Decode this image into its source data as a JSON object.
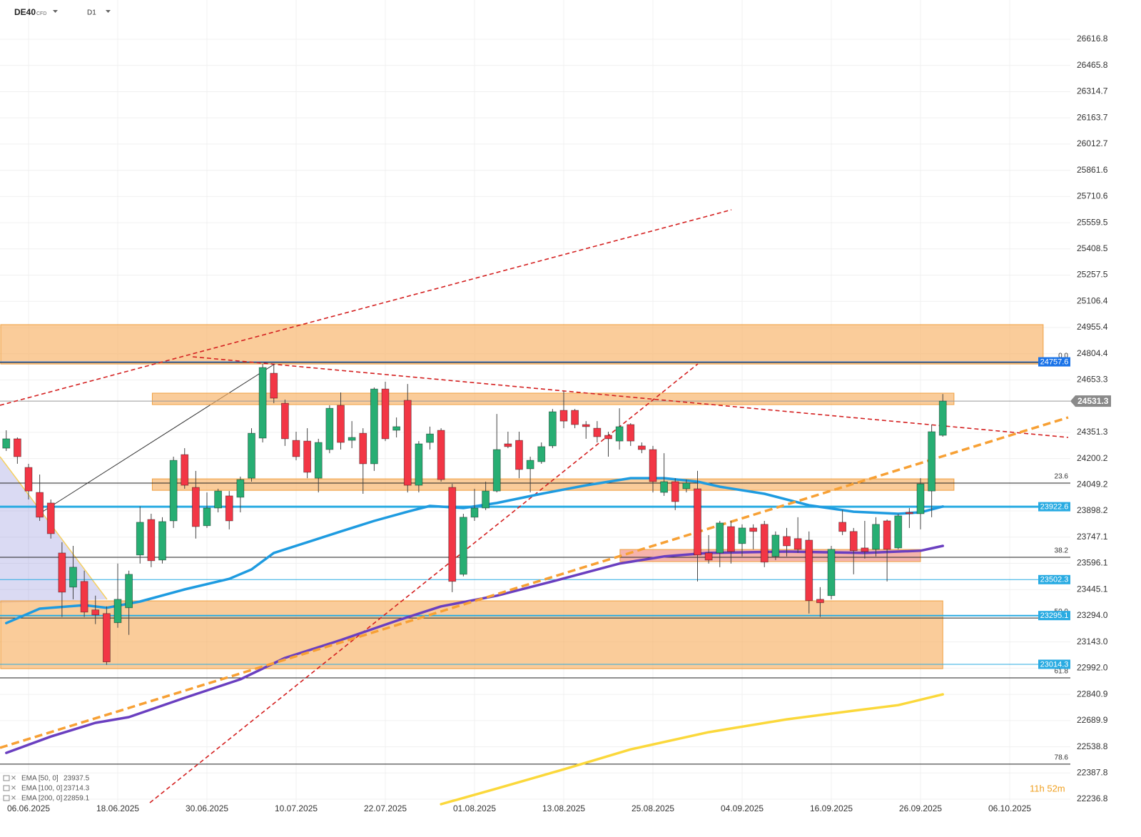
{
  "chart_data": {
    "type": "candlestick",
    "symbol": "DE40",
    "instrument_type": "CFD",
    "timeframe": "D1",
    "categories": [
      null,
      null,
      "06.06.2025",
      null,
      null,
      null,
      null,
      null,
      null,
      null,
      "18.06.2025",
      null,
      null,
      null,
      null,
      null,
      null,
      null,
      "30.06.2025",
      null,
      null,
      null,
      null,
      null,
      null,
      null,
      "10.07.2025",
      null,
      null,
      null,
      null,
      null,
      null,
      null,
      "22.07.2025",
      null,
      null,
      null,
      null,
      null,
      null,
      null,
      "01.08.2025",
      null,
      null,
      null,
      null,
      null,
      null,
      null,
      "13.08.2025",
      null,
      null,
      null,
      null,
      null,
      null,
      null,
      "25.08.2025",
      null,
      null,
      null,
      null,
      null,
      null,
      null,
      "04.09.2025",
      null,
      null,
      null,
      null,
      null,
      null,
      null,
      "16.09.2025",
      null,
      null,
      null,
      null,
      null,
      null,
      null,
      "26.09.2025",
      null,
      null,
      null,
      null,
      null,
      null,
      null,
      "06.10.2025"
    ],
    "open": [
      24260,
      24314,
      24149,
      24005,
      23944,
      23656,
      23459,
      23492,
      23328,
      23307,
      23254,
      23340,
      23644,
      23849,
      23615,
      23841,
      24223,
      24034,
      23813,
      23915,
      23985,
      23977,
      24087,
      24318,
      24692,
      24519,
      24305,
      24301,
      24087,
      24252,
      24507,
      24305,
      24346,
      24170,
      24601,
      24363,
      24536,
      24046,
      24293,
      24363,
      24034,
      23533,
      23862,
      23915,
      24013,
      24285,
      24305,
      24141,
      24182,
      24273,
      24478,
      24478,
      24396,
      24375,
      24334,
      24301,
      24396,
      24273,
      24252,
      24005,
      24067,
      24026,
      24026,
      23656,
      23656,
      23808,
      23710,
      23800,
      23821,
      23636,
      23751,
      23739,
      23730,
      23389,
      23410,
      23833,
      23780,
      23685,
      23677,
      23841,
      23685,
      23890,
      23882,
      24013,
      24334,
      null,
      null,
      null,
      null,
      null,
      null
    ],
    "high": [
      24363,
      24322,
      24170,
      24108,
      23964,
      23718,
      23697,
      23554,
      23410,
      23348,
      23595,
      23554,
      23924,
      23882,
      23862,
      24211,
      24260,
      24129,
      24005,
      24026,
      24013,
      24096,
      24375,
      24745,
      24745,
      24540,
      24355,
      24375,
      24314,
      24507,
      24581,
      24416,
      24375,
      24610,
      24643,
      24437,
      24630,
      24301,
      24384,
      24375,
      24054,
      23882,
      24026,
      24067,
      24457,
      24355,
      24355,
      24211,
      24293,
      24486,
      24589,
      24486,
      24416,
      24416,
      24355,
      24490,
      24404,
      24293,
      24273,
      24231,
      24087,
      24079,
      24129,
      23759,
      23841,
      23841,
      23821,
      23821,
      23841,
      23780,
      23800,
      23862,
      23780,
      23459,
      23697,
      23903,
      23800,
      23841,
      23862,
      23849,
      23882,
      23915,
      24087,
      24396,
      24572,
      null,
      null,
      null,
      null,
      null,
      null
    ],
    "low": [
      24244,
      24170,
      23964,
      23841,
      23739,
      23287,
      23389,
      23287,
      23246,
      23011,
      23225,
      23184,
      23595,
      23574,
      23595,
      23800,
      24026,
      23739,
      23800,
      23890,
      23792,
      23890,
      24067,
      24293,
      24519,
      24273,
      24190,
      24087,
      24005,
      24231,
      24252,
      24260,
      23997,
      24129,
      24301,
      24322,
      24005,
      24005,
      24252,
      24067,
      23430,
      23521,
      23841,
      23903,
      24005,
      24260,
      24087,
      24005,
      24170,
      24260,
      24375,
      24375,
      24314,
      24293,
      24211,
      24252,
      24273,
      24231,
      24005,
      23985,
      23903,
      24005,
      23492,
      23595,
      23574,
      23595,
      23636,
      23677,
      23574,
      23615,
      23636,
      23656,
      23307,
      23287,
      23389,
      23759,
      23533,
      23624,
      23636,
      23492,
      23677,
      23800,
      23792,
      23862,
      24326,
      null,
      null,
      null,
      null,
      null,
      null
    ],
    "close": [
      24314,
      24211,
      24013,
      23862,
      23767,
      23430,
      23574,
      23315,
      23299,
      23028,
      23389,
      23533,
      23833,
      23611,
      23837,
      24190,
      24046,
      23808,
      23915,
      24013,
      23841,
      24079,
      24346,
      24725,
      24548,
      24314,
      24211,
      24121,
      24293,
      24490,
      24293,
      24322,
      24170,
      24601,
      24314,
      24384,
      24046,
      24285,
      24342,
      24079,
      23492,
      23862,
      23915,
      24013,
      24252,
      24269,
      24137,
      24190,
      24269,
      24470,
      24416,
      24396,
      24384,
      24326,
      24314,
      24384,
      24301,
      24252,
      24067,
      24067,
      23952,
      24059,
      23644,
      23615,
      23829,
      23664,
      23800,
      23780,
      23603,
      23759,
      23697,
      23677,
      23381,
      23369,
      23677,
      23780,
      23669,
      23664,
      23821,
      23677,
      23870,
      23882,
      24054,
      24355,
      24531.3,
      null,
      null,
      null,
      null,
      null,
      null
    ],
    "up_color": "#27ae73",
    "down_color": "#f23645",
    "ylim": [
      22204,
      26843
    ],
    "yticks": [
      22236.8,
      22387.8,
      22538.8,
      22689.9,
      22840.9,
      {
        "value": 22992,
        "label": "22992.0"
      },
      {
        "value": 23143,
        "label": "23143.0"
      },
      {
        "value": 23294,
        "label": "23294.0"
      },
      23445.1,
      23596.1,
      23747.1,
      23898.2,
      24049.2,
      24200.2,
      24351.3,
      24653.3,
      24804.4,
      24955.4,
      25106.4,
      25257.5,
      25408.5,
      25559.5,
      25710.6,
      25861.6,
      26012.7,
      26163.7,
      26314.7,
      26465.8,
      26616.8
    ],
    "grid": true,
    "ema": [
      {
        "name": "EMA [50, 0]",
        "last": 23937.5,
        "color": "#1e9be0",
        "x": [
          0,
          3,
          7,
          9,
          12,
          16,
          20,
          22,
          24,
          27,
          30,
          33,
          36,
          38,
          41,
          44,
          48,
          52,
          56,
          59,
          62,
          64,
          68,
          72,
          76,
          80,
          82,
          84
        ],
        "values": [
          23252,
          23335,
          23355,
          23340,
          23376,
          23446,
          23507,
          23561,
          23656,
          23718,
          23780,
          23841,
          23894,
          23927,
          23915,
          23944,
          23997,
          24046,
          24087,
          24087,
          24067,
          24038,
          23997,
          23931,
          23894,
          23882,
          23890,
          23924
        ]
      },
      {
        "name": "EMA [100, 0]",
        "last": 23714.3,
        "color": "#6a3fc0",
        "x": [
          0,
          4,
          8,
          11,
          16,
          21,
          25,
          30,
          35,
          39,
          44,
          49,
          55,
          59,
          63,
          70,
          77,
          82,
          84
        ],
        "values": [
          22504,
          22598,
          22677,
          22710,
          22821,
          22928,
          23051,
          23154,
          23265,
          23348,
          23410,
          23492,
          23595,
          23636,
          23656,
          23664,
          23656,
          23669,
          23697
        ]
      },
      {
        "name": "EMA [200, 0]",
        "last": 22859.1,
        "color": "#fbd83b",
        "x": [
          39,
          44,
          50,
          56,
          63,
          70,
          76,
          80,
          84
        ],
        "values": [
          22208,
          22298,
          22409,
          22524,
          22623,
          22697,
          22747,
          22779,
          22841
        ]
      }
    ],
    "zones": [
      {
        "from": -0.5,
        "to": 93,
        "low": 24745,
        "high": 24972,
        "color": "#f7b064"
      },
      {
        "from": 13.1,
        "to": 85,
        "low": 24511,
        "high": 24577,
        "color": "#f7b064"
      },
      {
        "from": 13.1,
        "to": 85,
        "low": 24017,
        "high": 24083,
        "color": "#f7b064"
      },
      {
        "from": 55.05,
        "to": 82,
        "low": 23606,
        "high": 23676,
        "color": "#ef8a80"
      },
      {
        "from": -0.5,
        "to": 84,
        "low": 22989,
        "high": 23380,
        "color": "#f7b064"
      }
    ],
    "levels": [
      {
        "value": 24757.6,
        "color": "#1a73e8",
        "width": 1
      },
      {
        "value": 23922.6,
        "color": "#29abe2",
        "width": 3
      },
      {
        "value": 23502.3,
        "color": "#29abe2",
        "width": 1
      },
      {
        "value": 23295.1,
        "color": "#29abe2",
        "width": 2
      },
      {
        "value": 23014.3,
        "color": "#29abe2",
        "width": 1
      }
    ],
    "fib_levels": [
      {
        "label": "0.0",
        "value": 24754
      },
      {
        "label": "23.6",
        "value": 24059
      },
      {
        "label": "38.2",
        "value": 23631
      },
      {
        "label": "50.0",
        "value": 23281
      },
      {
        "label": "61.8",
        "value": 22936
      },
      {
        "label": "78.6",
        "value": 22439
      }
    ],
    "countdown": "11h 52m"
  }
}
